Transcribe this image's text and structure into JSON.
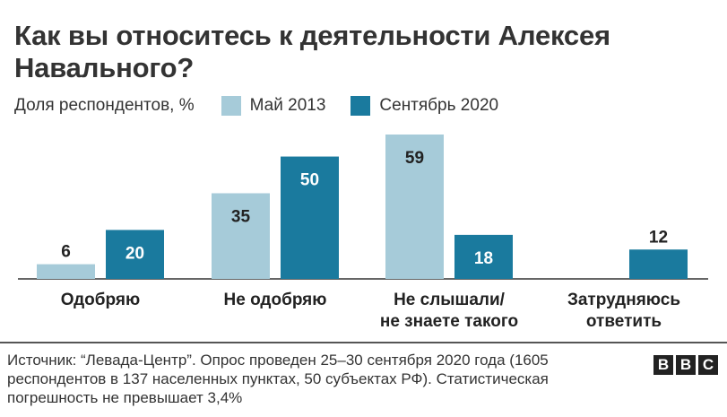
{
  "title": "Как вы относитесь к деятельности Алексея Навального?",
  "legend": {
    "ylabel": "Доля респондентов, %",
    "entries": [
      {
        "label": "Май 2013",
        "color": "#a6cbd9"
      },
      {
        "label": "Сентябрь 2020",
        "color": "#1a7a9e"
      }
    ]
  },
  "chart_data": {
    "type": "bar",
    "title": "Как вы относитесь к деятельности Алексея Навального?",
    "ylabel": "Доля респондентов, %",
    "categories": [
      "Одобряю",
      "Не одобряю",
      "Не слышали/ не знаете такого",
      "Затрудняюсь ответить"
    ],
    "category_lines": [
      [
        "Одобряю"
      ],
      [
        "Не одобряю"
      ],
      [
        "Не слышали/",
        "не знаете такого"
      ],
      [
        "Затрудняюсь",
        "ответить"
      ]
    ],
    "series": [
      {
        "name": "Май 2013",
        "color": "#a6cbd9",
        "label_color": "#222222",
        "values": [
          6,
          35,
          59,
          null
        ]
      },
      {
        "name": "Сентябрь 2020",
        "color": "#1a7a9e",
        "label_color": "#ffffff",
        "values": [
          20,
          50,
          18,
          12
        ]
      }
    ],
    "ylim": [
      0,
      59
    ],
    "grid": false,
    "legend_position": "top-left"
  },
  "footer": {
    "source": "Источник: “Левада-Центр”. Опрос проведен 25–30 сентября 2020 года (1605 респондентов в 137 населенных пунктах, 50 субъектах РФ). Статистическая погрешность не превышает 3,4%",
    "logo": [
      "B",
      "B",
      "C"
    ]
  }
}
